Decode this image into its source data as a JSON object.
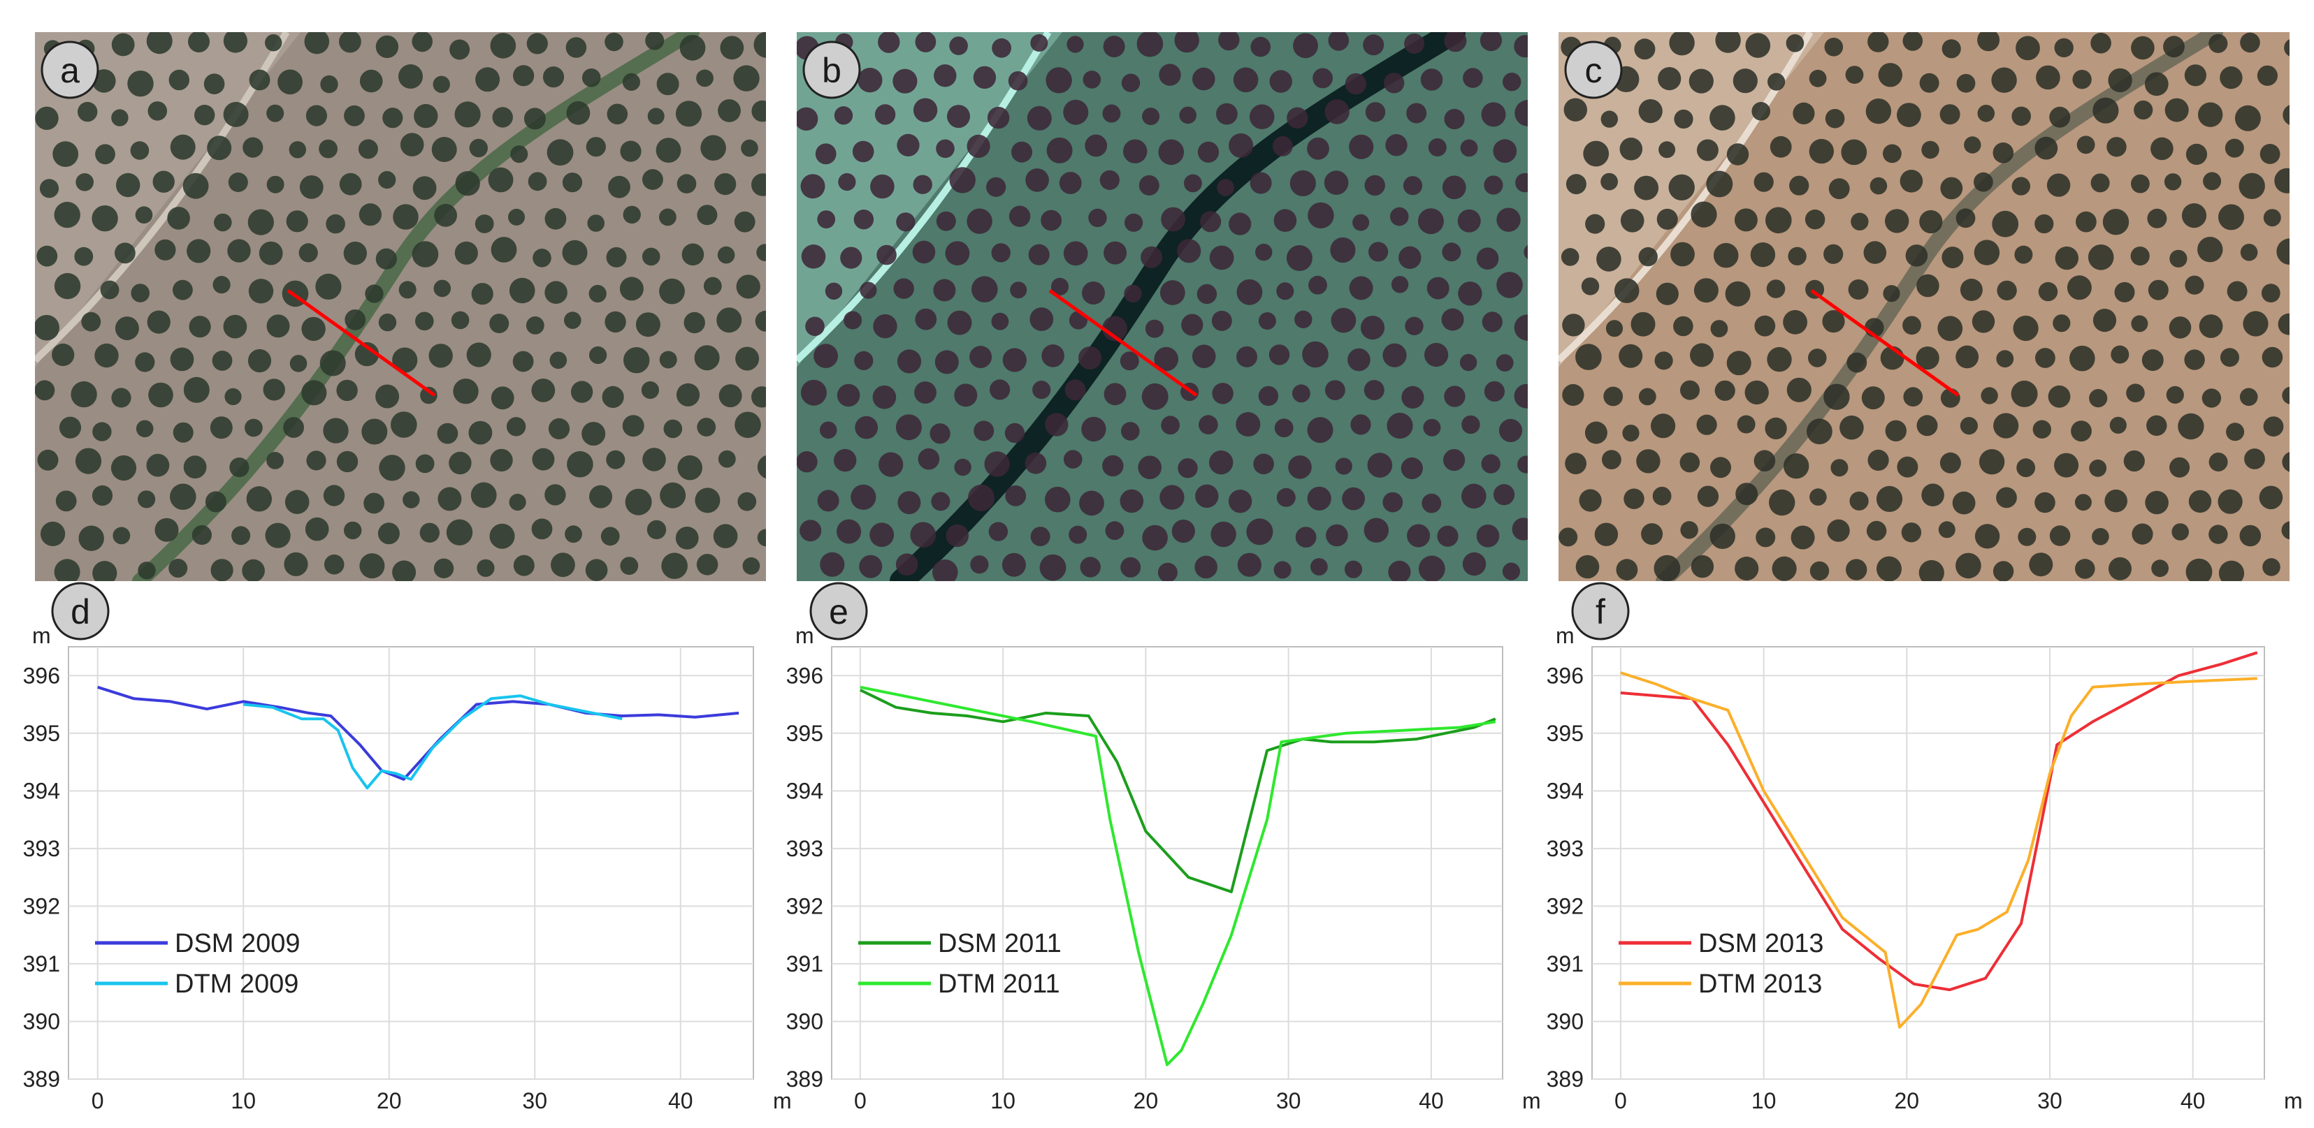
{
  "panels": {
    "imagery": [
      {
        "letter": "a",
        "palette": {
          "ground": "#9a8d84",
          "ground_light": "#b7aca3",
          "tree": "#2e3a2e",
          "channel": "#4e6a4a",
          "road": "#cfc6bb"
        },
        "profile_line_color": "#ff0000"
      },
      {
        "letter": "b",
        "palette": {
          "ground": "#4f7a6c",
          "ground_light": "#8fc7b6",
          "tree": "#3c2838",
          "channel": "#071a1c",
          "road": "#b8efe3"
        },
        "profile_line_color": "#ff0000"
      },
      {
        "letter": "c",
        "palette": {
          "ground": "#b8987e",
          "ground_light": "#d7c6b3",
          "tree": "#2d3129",
          "channel": "#6d6a5a",
          "road": "#e8ddd0"
        },
        "profile_line_color": "#ff0000"
      }
    ],
    "profiles": [
      {
        "letter": "d"
      },
      {
        "letter": "e"
      },
      {
        "letter": "f"
      }
    ]
  },
  "chart_data": [
    {
      "type": "line",
      "panel": "d",
      "ylabel": "m",
      "xlabel": "m",
      "xlim": [
        -2,
        45
      ],
      "ylim": [
        389,
        396.5
      ],
      "xticks": [
        "0",
        "10",
        "20",
        "30",
        "40"
      ],
      "yticks": [
        "389",
        "390",
        "391",
        "392",
        "393",
        "394",
        "395",
        "396"
      ],
      "legend_position": "bottom-left",
      "series": [
        {
          "name": "DSM 2009",
          "color": "#3b3bdc",
          "x": [
            0,
            2.5,
            5,
            7.5,
            10,
            12.5,
            14.5,
            16,
            18,
            19.5,
            21,
            23.5,
            26,
            28.5,
            31,
            33.5,
            36,
            38.5,
            41,
            44
          ],
          "y": [
            395.8,
            395.6,
            395.55,
            395.42,
            395.55,
            395.45,
            395.35,
            395.3,
            394.8,
            394.35,
            394.2,
            394.9,
            395.5,
            395.55,
            395.5,
            395.35,
            395.3,
            395.32,
            395.28,
            395.35
          ]
        },
        {
          "name": "DTM 2009",
          "color": "#18c4ee",
          "x": [
            10,
            12,
            14,
            15.5,
            16.5,
            17.5,
            18.5,
            19.5,
            20.5,
            21.5,
            23,
            25,
            27,
            29,
            31,
            33,
            36
          ],
          "y": [
            395.5,
            395.45,
            395.25,
            395.25,
            395.05,
            394.4,
            394.05,
            394.35,
            394.3,
            394.2,
            394.75,
            395.25,
            395.6,
            395.65,
            395.5,
            395.4,
            395.25
          ]
        }
      ]
    },
    {
      "type": "line",
      "panel": "e",
      "ylabel": "m",
      "xlabel": "m",
      "xlim": [
        -2,
        45
      ],
      "ylim": [
        389,
        396.5
      ],
      "xticks": [
        "0",
        "10",
        "20",
        "30",
        "40"
      ],
      "yticks": [
        "389",
        "390",
        "391",
        "392",
        "393",
        "394",
        "395",
        "396"
      ],
      "legend_position": "bottom-left",
      "series": [
        {
          "name": "DSM 2011",
          "color": "#1c9e1c",
          "x": [
            0,
            2.5,
            5,
            7.5,
            10,
            13,
            16,
            18,
            20,
            23,
            26,
            28.5,
            31,
            33,
            36,
            39,
            41,
            43,
            44.5
          ],
          "y": [
            395.75,
            395.45,
            395.35,
            395.3,
            395.2,
            395.35,
            395.3,
            394.5,
            393.3,
            392.5,
            392.25,
            394.7,
            394.9,
            394.85,
            394.85,
            394.9,
            395.0,
            395.1,
            395.25
          ]
        },
        {
          "name": "DTM 2011",
          "color": "#2ee82e",
          "x": [
            0,
            4,
            8,
            12,
            16.5,
            17.5,
            19.5,
            21.5,
            22.5,
            24,
            26,
            28.5,
            29.5,
            31,
            34,
            38,
            42,
            44.5
          ],
          "y": [
            395.8,
            395.6,
            395.4,
            395.2,
            394.95,
            393.5,
            391.2,
            389.25,
            389.5,
            390.3,
            391.5,
            393.5,
            394.85,
            394.9,
            395.0,
            395.05,
            395.1,
            395.2
          ]
        }
      ]
    },
    {
      "type": "line",
      "panel": "f",
      "ylabel": "m",
      "xlabel": "m",
      "xlim": [
        -2,
        45
      ],
      "ylim": [
        389,
        396.5
      ],
      "xticks": [
        "0",
        "10",
        "20",
        "30",
        "40"
      ],
      "yticks": [
        "389",
        "390",
        "391",
        "392",
        "393",
        "394",
        "395",
        "396"
      ],
      "legend_position": "bottom-left",
      "series": [
        {
          "name": "DSM 2013",
          "color": "#ee2e36",
          "x": [
            0,
            5,
            7.5,
            10,
            13,
            15.5,
            18,
            20.5,
            23,
            25.5,
            28,
            30.5,
            33,
            36,
            39,
            42,
            44.5
          ],
          "y": [
            395.7,
            395.6,
            394.8,
            393.8,
            392.6,
            391.6,
            391.1,
            390.65,
            390.55,
            390.75,
            391.7,
            394.8,
            395.2,
            395.6,
            396.0,
            396.2,
            396.4
          ]
        },
        {
          "name": "DTM 2013",
          "color": "#fbaf2a",
          "x": [
            0,
            2.5,
            5,
            7.5,
            10,
            13,
            15.5,
            18.5,
            19.5,
            21,
            23.5,
            25,
            27,
            28.5,
            30,
            31.5,
            33,
            36,
            40,
            44.5
          ],
          "y": [
            396.05,
            395.85,
            395.6,
            395.4,
            394.0,
            392.8,
            391.8,
            391.2,
            389.9,
            390.3,
            391.5,
            391.6,
            391.9,
            392.8,
            394.3,
            395.3,
            395.8,
            395.85,
            395.9,
            395.95
          ]
        }
      ]
    }
  ]
}
